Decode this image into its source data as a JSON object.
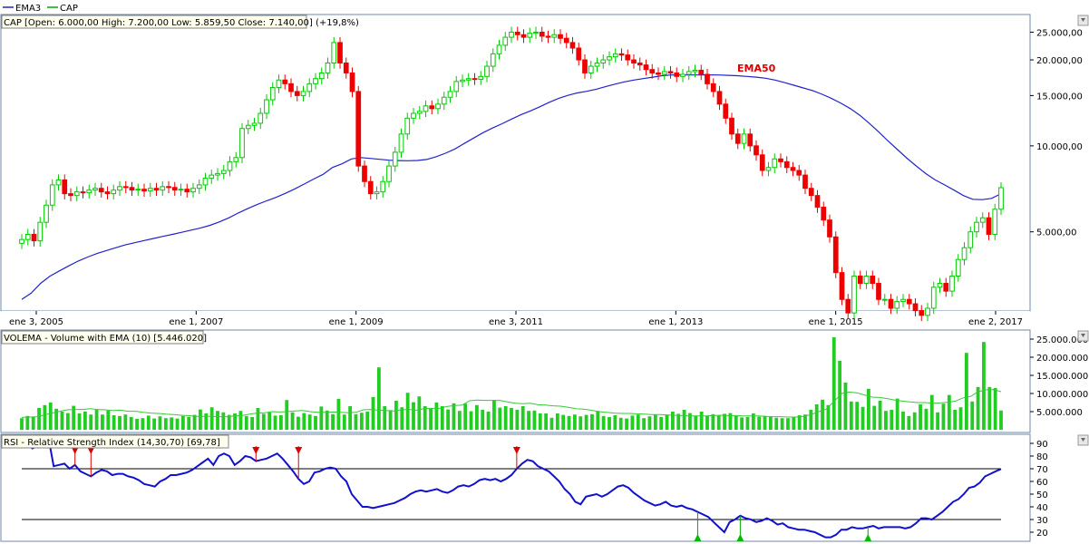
{
  "legend": {
    "ema_label": "EMA3",
    "cap_label": "CAP"
  },
  "colors": {
    "up": "#00cc00",
    "down": "#ee0000",
    "ema": "#2222cc",
    "volume": "#22cc22",
    "rsi": "#1111cc",
    "annot": "#dd0000"
  },
  "panels": {
    "price": {
      "info": "CAP [Open: 6.000,00  High: 7.200,00  Low: 5.859,50  Close: 7.140,00] (+19,8%)",
      "annotation": "EMA50"
    },
    "volume": {
      "info": "VOLEMA - Volume with EMA (10) [5.446.020]"
    },
    "rsi": {
      "info": "RSI - Relative Strength Index (14,30,70) [69,78]"
    }
  },
  "chart_data": [
    {
      "type": "candlestick",
      "title": "CAP",
      "yscale": "log",
      "ylim": [
        2700,
        28000
      ],
      "y_ticks": [
        {
          "v": 25000,
          "label": "25.000,00"
        },
        {
          "v": 20000,
          "label": "20.000,00"
        },
        {
          "v": 15000,
          "label": "15.000,00"
        },
        {
          "v": 10000,
          "label": "10.000,00"
        },
        {
          "v": 5000,
          "label": "5.000,00"
        }
      ],
      "x_ticks": [
        "ene 3, 2005",
        "ene 1, 2007",
        "ene 1, 2009",
        "ene 3, 2011",
        "ene 1, 2013",
        "ene 1, 2015",
        "ene 2, 2017"
      ],
      "close": [
        4700,
        4900,
        4650,
        5400,
        6200,
        7300,
        7600,
        6800,
        6700,
        6900,
        6850,
        7000,
        7100,
        6900,
        6800,
        7000,
        7200,
        7150,
        7000,
        7050,
        6950,
        7100,
        7000,
        7200,
        7150,
        7000,
        7050,
        6900,
        7100,
        7300,
        7700,
        7900,
        8000,
        8200,
        8800,
        9100,
        11500,
        11800,
        12000,
        13000,
        14500,
        16000,
        17000,
        16500,
        15500,
        15000,
        15500,
        16500,
        17200,
        18000,
        19500,
        23000,
        19500,
        18000,
        15500,
        8500,
        7500,
        6800,
        6900,
        7500,
        8500,
        9500,
        11000,
        12500,
        13000,
        13200,
        13800,
        13500,
        14000,
        14800,
        15500,
        16800,
        17000,
        17200,
        17100,
        17500,
        19000,
        21000,
        22500,
        24000,
        25000,
        24500,
        24000,
        24800,
        25000,
        24200,
        24000,
        24500,
        23800,
        23000,
        22000,
        20000,
        18000,
        19000,
        19500,
        20000,
        20500,
        21000,
        20800,
        20000,
        19500,
        19200,
        18500,
        18000,
        17800,
        18200,
        18000,
        17500,
        17800,
        18200,
        18400,
        17800,
        16500,
        15500,
        14000,
        12500,
        11000,
        10200,
        11000,
        10000,
        9300,
        8200,
        8400,
        9000,
        8800,
        8400,
        8200,
        7900,
        7100,
        6700,
        6100,
        5500,
        4800,
        3600,
        2900,
        2600,
        3500,
        3300,
        3500,
        3300,
        2900,
        2900,
        2700,
        2850,
        2900,
        2800,
        2650,
        2550,
        2700,
        3200,
        3300,
        3100,
        3500,
        4000,
        4400,
        5000,
        5400,
        5600,
        4900,
        6000,
        7140
      ],
      "ema50": [
        2900,
        3050,
        3300,
        3500,
        3650,
        3800,
        3950,
        4080,
        4200,
        4300,
        4400,
        4500,
        4580,
        4660,
        4740,
        4820,
        4900,
        4980,
        5070,
        5160,
        5270,
        5420,
        5600,
        5820,
        6030,
        6230,
        6420,
        6600,
        6820,
        7070,
        7350,
        7650,
        7950,
        8400,
        8650,
        9000,
        9100,
        9040,
        8970,
        8910,
        8880,
        8870,
        8890,
        8960,
        9160,
        9420,
        9750,
        10200,
        10650,
        11120,
        11550,
        11950,
        12400,
        12850,
        13250,
        13700,
        14200,
        14650,
        15020,
        15320,
        15520,
        15790,
        16110,
        16450,
        16750,
        17000,
        17200,
        17400,
        17600,
        17700,
        17700,
        17700,
        17700,
        17720,
        17700,
        17650,
        17600,
        17500,
        17400,
        17250,
        17000,
        16650,
        16300,
        15950,
        15600,
        15150,
        14650,
        14100,
        13500,
        12800,
        12000,
        11200,
        10400,
        9700,
        9050,
        8500,
        8000,
        7600,
        7300,
        7000,
        6700,
        6500,
        6480,
        6550,
        6800
      ],
      "series": [
        {
          "name": "CAP"
        },
        {
          "name": "EMA3"
        },
        {
          "name": "EMA50"
        }
      ]
    },
    {
      "type": "bar",
      "title": "VOLEMA - Volume with EMA (10)",
      "ylim": [
        0,
        27000000
      ],
      "y_ticks": [
        {
          "v": 25000000,
          "label": "25.000.000"
        },
        {
          "v": 20000000,
          "label": "20.000.000"
        },
        {
          "v": 15000000,
          "label": "15.000.000"
        },
        {
          "v": 10000000,
          "label": "10.000.000"
        },
        {
          "v": 5000000,
          "label": "5.000.000"
        }
      ],
      "values": [
        3.2,
        3.8,
        3.5,
        6,
        6.8,
        7.5,
        5.8,
        5,
        4.6,
        6.6,
        4.5,
        5,
        4.2,
        5.5,
        4.2,
        5.3,
        4,
        3.8,
        4.2,
        3.5,
        3,
        3.2,
        3.9,
        3.1,
        3.7,
        3.2,
        3.4,
        3.1,
        3.8,
        3.5,
        4.1,
        5.6,
        4.5,
        6.2,
        5.2,
        4.8,
        4.1,
        4.5,
        5.2,
        3.8,
        3.5,
        6,
        4.4,
        4.8,
        3.9,
        4,
        8.2,
        4.8,
        3.6,
        4.6,
        4.2,
        3.8,
        6.4,
        5.3,
        4.3,
        8.5,
        4.2,
        6.5,
        4.3,
        4.7,
        5,
        9,
        17.2,
        6.5,
        5.4,
        8,
        6.2,
        10.2,
        7.6,
        9.2,
        6.5,
        6,
        7.5,
        6.5,
        5.6,
        7.3,
        5.2,
        7.2,
        5.1,
        6.8,
        5.5,
        5,
        8.2,
        6.1,
        6.5,
        6,
        5.5,
        6.5,
        5.2,
        5.3,
        4.5,
        4.5,
        3.3,
        4.5,
        4.1,
        3.8,
        4.2,
        3.7,
        4.1,
        4.3,
        5.2,
        3.8,
        3.5,
        4,
        3.3,
        3.1,
        3.9,
        4.2,
        3.2,
        3.7,
        4.1,
        3.5,
        4,
        5,
        4.4,
        5.5,
        4.6,
        3.8,
        5,
        3.8,
        4.3,
        3.9,
        4.4,
        4.6,
        3.8,
        3.4,
        3.5,
        4.5,
        3.6,
        3.8,
        3.7,
        3.3,
        3.2,
        3.2,
        3.5,
        4,
        4.2,
        5.5,
        7,
        8.3,
        6.8,
        25.5,
        19,
        13,
        7.8,
        7.7,
        6.3,
        11.3,
        6.6,
        8,
        5.2,
        5.5,
        8.6,
        5,
        3.8,
        4.8,
        7,
        5.8,
        9.6,
        4.8,
        7.2,
        9.6,
        5.5,
        6.2,
        21.2,
        7.8,
        11.8,
        24.2,
        11.8,
        11.5,
        5.3
      ],
      "ema": [
        3.4,
        3.5,
        3.6,
        4.1,
        4.6,
        5.1,
        5.5,
        5.6,
        5.6,
        5.8,
        5.6,
        5.5,
        5.3,
        5.4,
        5.1,
        5.1,
        4.8,
        4.6,
        4.5,
        4.3,
        4.2,
        4,
        3.9,
        3.7,
        3.7,
        3.7,
        3.6,
        3.6,
        3.8,
        3.9,
        4.3,
        4.6,
        4.7,
        5,
        4.9,
        5,
        5.2,
        5.3,
        5,
        4.8,
        4.8,
        4.9,
        4.8,
        4.7,
        4.8,
        5.5,
        5.6,
        5.4,
        5.3,
        5.2,
        5.5,
        5.6,
        5.4,
        5.8,
        5.9,
        5.9,
        6.4,
        6.7,
        6.8,
        8,
        8.2,
        8.1,
        8.1,
        8.1,
        7.7,
        7.3,
        7.2,
        7.3,
        6.9,
        6.8,
        6.6,
        6.5,
        6.2,
        5.8,
        5.7,
        5.4,
        5,
        4.8,
        4.6,
        4.5,
        4.5,
        4.4,
        4.3,
        4.2,
        4.2,
        4.1,
        4,
        3.9,
        3.8,
        3.8,
        3.8,
        3.9,
        4,
        3.9,
        3.9,
        3.8,
        3.8,
        3.8,
        3.7,
        3.6,
        3.6,
        3.5,
        3.5,
        3.7,
        4.2,
        5,
        5.7,
        7.8,
        10,
        10.4,
        10.2,
        9.6,
        9,
        8.9,
        8.6,
        8.2,
        7.9,
        7.7,
        7.5,
        7.5,
        7.3,
        7.4,
        7.6,
        7.9,
        8.8,
        9.2,
        10.5,
        11,
        11.1,
        10.5
      ],
      "series": [
        {
          "name": "VOLEMA - Volume with EMA (10)"
        }
      ]
    },
    {
      "type": "line",
      "title": "RSI - Relative Strength Index (14,30,70)",
      "ylim": [
        15,
        95
      ],
      "y_ticks": [
        90,
        80,
        70,
        60,
        50,
        40,
        30,
        20
      ],
      "levels": [
        70,
        30
      ],
      "values": [
        90,
        90,
        86,
        88,
        95,
        95,
        72,
        73,
        74,
        70,
        73,
        68,
        66,
        64,
        67,
        69,
        68,
        65,
        66,
        66,
        64,
        63,
        61,
        58,
        57,
        56,
        60,
        62,
        65,
        65,
        66,
        67,
        69,
        72,
        75,
        78,
        73,
        80,
        82,
        80,
        73,
        76,
        80,
        79,
        76,
        77,
        78,
        80,
        82,
        78,
        73,
        68,
        62,
        58,
        60,
        67,
        68,
        70,
        71,
        70,
        64,
        60,
        50,
        45,
        40,
        40,
        39,
        40,
        41,
        42,
        43,
        45,
        47,
        50,
        52,
        53,
        52,
        53,
        54,
        52,
        51,
        53,
        56,
        57,
        56,
        58,
        61,
        62,
        61,
        62,
        60,
        62,
        65,
        70,
        74,
        77,
        76,
        72,
        70,
        68,
        64,
        60,
        54,
        50,
        44,
        42,
        48,
        49,
        50,
        48,
        50,
        53,
        56,
        57,
        55,
        51,
        48,
        45,
        43,
        41,
        42,
        44,
        41,
        40,
        41,
        39,
        38,
        36,
        34,
        32,
        28,
        24,
        20,
        28,
        30,
        33,
        31,
        30,
        28,
        29,
        31,
        29,
        26,
        27,
        24,
        23,
        22,
        22,
        21,
        20,
        18,
        16,
        16,
        18,
        22,
        22,
        24,
        23,
        23,
        24,
        25,
        23,
        24,
        24,
        24,
        24,
        23,
        24,
        27,
        31,
        31,
        30,
        33,
        36,
        40,
        44,
        46,
        50,
        55,
        56,
        59,
        64,
        66,
        68,
        69.78
      ],
      "sell_signals": [
        10,
        13,
        44,
        52,
        93
      ],
      "buy_signals": [
        127,
        135,
        159
      ]
    }
  ]
}
